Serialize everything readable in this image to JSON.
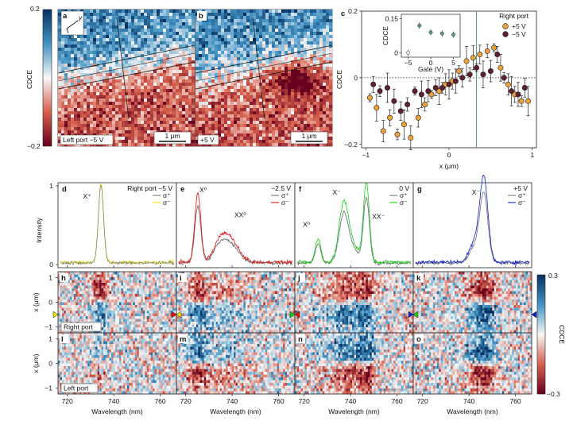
{
  "colors": {
    "red": "#67001f",
    "white": "#f7f7f7",
    "blue": "#053061",
    "orange": "#f0a23a",
    "maroon": "#5e1f2f",
    "green_line": "#2e9f6b"
  },
  "top_maps": {
    "colorbar": {
      "label": "CDCE",
      "max": "0.2",
      "min": "−0.2"
    },
    "a": {
      "letter": "a",
      "caption": "Left port −5 V",
      "scale": "1 μm",
      "axes": [
        "y",
        "x"
      ]
    },
    "b": {
      "letter": "b",
      "caption": "+5 V",
      "scale": "1 μm"
    }
  },
  "chart_data": [
    {
      "panel": "c",
      "type": "scatter",
      "title": "Right port",
      "xlabel": "x (μm)",
      "ylabel": "CDCE",
      "xlim": [
        -1.05,
        1.05
      ],
      "ylim": [
        -0.21,
        0.2
      ],
      "xticks": [
        "−1",
        "0",
        "1"
      ],
      "yticks": [
        "0.2",
        "0",
        "−0.2"
      ],
      "vertical_line_x": 0.33,
      "series": [
        {
          "name": "+5 V",
          "color": "#f0a23a",
          "x": [
            -0.95,
            -0.87,
            -0.79,
            -0.71,
            -0.62,
            -0.54,
            -0.46,
            -0.37,
            -0.29,
            -0.21,
            -0.12,
            -0.04,
            0.04,
            0.12,
            0.21,
            0.29,
            0.37,
            0.46,
            0.54,
            0.62,
            0.71,
            0.79,
            0.87,
            0.95
          ],
          "y": [
            -0.06,
            -0.09,
            -0.16,
            -0.12,
            -0.17,
            -0.14,
            -0.18,
            -0.12,
            -0.08,
            -0.05,
            -0.04,
            -0.02,
            -0.01,
            0.02,
            0.05,
            0.06,
            0.07,
            0.08,
            0.09,
            0.03,
            -0.02,
            -0.05,
            -0.07,
            -0.07
          ]
        },
        {
          "name": "−5 V",
          "color": "#5e1f2f",
          "x": [
            -0.91,
            -0.83,
            -0.74,
            -0.66,
            -0.58,
            -0.5,
            -0.41,
            -0.33,
            -0.25,
            -0.16,
            -0.08,
            0.0,
            0.08,
            0.16,
            0.25,
            0.33,
            0.41,
            0.5,
            0.58,
            0.66,
            0.75,
            0.83,
            0.91
          ],
          "y": [
            -0.02,
            -0.04,
            -0.03,
            -0.07,
            -0.1,
            -0.08,
            -0.04,
            -0.05,
            -0.04,
            -0.03,
            -0.03,
            -0.02,
            -0.01,
            0.0,
            0.01,
            0.03,
            0.01,
            0.02,
            0.07,
            0.0,
            -0.04,
            -0.05,
            -0.03
          ]
        }
      ]
    },
    {
      "panel": "c-inset",
      "type": "scatter",
      "xlabel": "Gate (V)",
      "ylabel": "CDCE",
      "xlim": [
        -6.5,
        6.5
      ],
      "ylim": [
        -0.02,
        0.17
      ],
      "xticks": [
        "−5",
        "0",
        "5"
      ],
      "yticks": [
        "0.15",
        "0"
      ],
      "x": [
        -5,
        -2.5,
        0,
        2.5,
        5
      ],
      "y": [
        0.0,
        0.12,
        0.09,
        0.085,
        0.08
      ],
      "colors": [
        "#f7f7f7",
        "#5e9e88",
        "#5e9e88",
        "#5e9e88",
        "#5e9e88"
      ]
    },
    {
      "panel": "d-g",
      "type": "line",
      "xlabel": "Wavelength (nm)",
      "ylabel": "Intensity",
      "xlim": [
        716,
        767
      ],
      "ylim": [
        0,
        1
      ],
      "xticks": [
        "720",
        "740",
        "760"
      ],
      "yticks": [
        "1",
        "0"
      ],
      "panels": [
        {
          "letter": "d",
          "gate": "Right port −5 V",
          "plus_color": "#777777",
          "minus_color": "#f2e600",
          "peaks": [
            [
              734.5,
              1.0,
              1.1
            ]
          ],
          "annotations": [
            {
              "text": "X⁺",
              "x": 728.5,
              "y": 0.84
            }
          ]
        },
        {
          "letter": "e",
          "gate": "−2.5 V",
          "plus_color": "#777777",
          "minus_color": "#e01010",
          "peaks": [
            [
              725.2,
              0.88,
              1.3
            ],
            [
              738.5,
              0.32,
              3.8
            ],
            [
              734.0,
              0.14,
              2.5
            ]
          ],
          "annotations": [
            {
              "text": "X⁰",
              "x": 727.5,
              "y": 0.92
            },
            {
              "text": "XX⁰",
              "x": 743.5,
              "y": 0.6
            }
          ]
        },
        {
          "letter": "f",
          "gate": "0 V",
          "plus_color": "#777777",
          "minus_color": "#10d010",
          "peaks": [
            [
              726.0,
              0.3,
              1.2
            ],
            [
              737.0,
              0.72,
              2.0
            ],
            [
              746.8,
              1.0,
              1.3
            ],
            [
              741.0,
              0.2,
              2.5
            ]
          ],
          "annotations": [
            {
              "text": "X⁰",
              "x": 721.0,
              "y": 0.48
            },
            {
              "text": "X⁻",
              "x": 734.0,
              "y": 0.89
            },
            {
              "text": "XX⁻",
              "x": 752.0,
              "y": 0.58
            }
          ]
        },
        {
          "letter": "g",
          "gate": "+5 V",
          "plus_color": "#777777",
          "minus_color": "#1020d0",
          "peaks": [
            [
              746.5,
              1.0,
              1.7
            ],
            [
              743.0,
              0.28,
              2.5
            ]
          ],
          "annotations": [
            {
              "text": "X⁻",
              "x": 743.0,
              "y": 0.89
            }
          ]
        }
      ]
    },
    {
      "panel": "h-o",
      "type": "heatmap",
      "xlabel": "Wavelength (nm)",
      "ylabel": "x (μm)",
      "xlim": [
        716,
        767
      ],
      "ylim": [
        -1,
        1
      ],
      "xticks": [
        "720",
        "740",
        "760"
      ],
      "yticks": [
        "1",
        "0",
        "−1"
      ],
      "colorbar": {
        "label": "CDCE",
        "max": "0.3",
        "min": "−0.3"
      },
      "rows": [
        {
          "port": "Right port",
          "letters": [
            "h",
            "i",
            "j",
            "k"
          ]
        },
        {
          "port": "Left port",
          "letters": [
            "l",
            "m",
            "n",
            "o"
          ]
        }
      ]
    }
  ]
}
